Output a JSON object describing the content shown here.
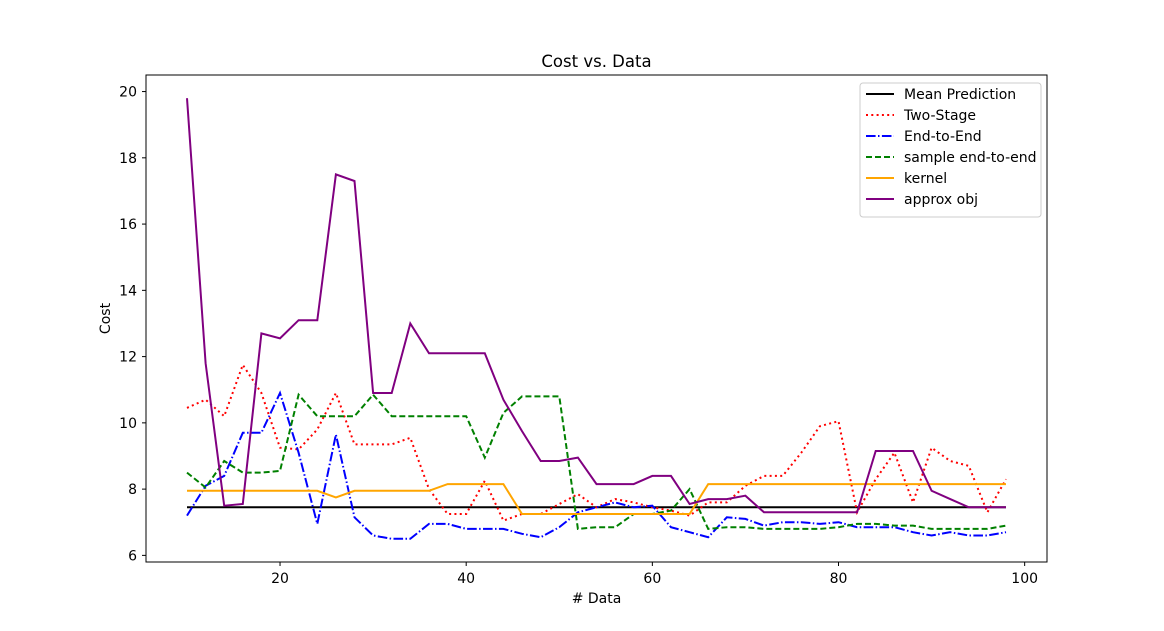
{
  "chart_data": {
    "type": "line",
    "title": "Cost vs. Data",
    "xlabel": "# Data",
    "ylabel": "Cost",
    "xlim": [
      5.6,
      102.4
    ],
    "ylim": [
      5.8,
      20.5
    ],
    "xticks": [
      20,
      40,
      60,
      80,
      100
    ],
    "yticks": [
      6,
      8,
      10,
      12,
      14,
      16,
      18,
      20
    ],
    "grid": false,
    "legend_position": "top-right",
    "x": [
      10,
      12,
      14,
      16,
      18,
      20,
      22,
      24,
      26,
      28,
      30,
      32,
      34,
      36,
      38,
      40,
      42,
      44,
      46,
      48,
      50,
      52,
      54,
      56,
      58,
      60,
      62,
      64,
      66,
      68,
      70,
      72,
      74,
      76,
      78,
      80,
      82,
      84,
      86,
      88,
      90,
      92,
      94,
      96,
      98
    ],
    "series": [
      {
        "name": "Mean Prediction",
        "color": "#000000",
        "dash": "solid",
        "y": [
          7.45,
          7.45,
          7.45,
          7.45,
          7.45,
          7.45,
          7.45,
          7.45,
          7.45,
          7.45,
          7.45,
          7.45,
          7.45,
          7.45,
          7.45,
          7.45,
          7.45,
          7.45,
          7.45,
          7.45,
          7.45,
          7.45,
          7.45,
          7.45,
          7.45,
          7.45,
          7.45,
          7.45,
          7.45,
          7.45,
          7.45,
          7.45,
          7.45,
          7.45,
          7.45,
          7.45,
          7.45,
          7.45,
          7.45,
          7.45,
          7.45,
          7.45,
          7.45,
          7.45,
          7.45
        ]
      },
      {
        "name": "Two-Stage",
        "color": "#ff0000",
        "dash": "dotted",
        "y": [
          10.45,
          10.7,
          10.2,
          11.75,
          10.9,
          9.25,
          9.2,
          9.8,
          10.9,
          9.35,
          9.35,
          9.35,
          9.55,
          8.0,
          7.25,
          7.25,
          8.25,
          7.05,
          7.25,
          7.25,
          7.55,
          7.85,
          7.45,
          7.7,
          7.6,
          7.45,
          7.35,
          7.2,
          7.6,
          7.6,
          8.1,
          8.4,
          8.4,
          9.1,
          9.9,
          10.05,
          7.3,
          8.3,
          9.1,
          7.6,
          9.25,
          8.85,
          8.7,
          7.3,
          8.3
        ]
      },
      {
        "name": "End-to-End",
        "color": "#0000ff",
        "dash": "dashdot",
        "y": [
          7.2,
          8.1,
          8.4,
          9.7,
          9.7,
          10.9,
          9.1,
          6.95,
          9.65,
          7.15,
          6.6,
          6.5,
          6.5,
          6.95,
          6.95,
          6.8,
          6.8,
          6.8,
          6.65,
          6.55,
          6.85,
          7.3,
          7.45,
          7.6,
          7.45,
          7.5,
          6.85,
          6.7,
          6.55,
          7.15,
          7.1,
          6.9,
          7.0,
          7.0,
          6.95,
          7.0,
          6.85,
          6.85,
          6.85,
          6.7,
          6.6,
          6.7,
          6.6,
          6.6,
          6.7
        ]
      },
      {
        "name": "sample end-to-end",
        "color": "#008000",
        "dash": "dashed",
        "y": [
          8.5,
          8.05,
          8.85,
          8.5,
          8.5,
          8.55,
          10.85,
          10.2,
          10.2,
          10.2,
          10.85,
          10.2,
          10.2,
          10.2,
          10.2,
          10.2,
          8.95,
          10.3,
          10.8,
          10.8,
          10.8,
          6.8,
          6.85,
          6.85,
          7.25,
          7.25,
          7.35,
          8.0,
          6.8,
          6.85,
          6.85,
          6.8,
          6.8,
          6.8,
          6.8,
          6.85,
          6.95,
          6.95,
          6.9,
          6.9,
          6.8,
          6.8,
          6.8,
          6.8,
          6.9
        ]
      },
      {
        "name": "kernel",
        "color": "#ffa500",
        "dash": "solid",
        "y": [
          7.95,
          7.95,
          7.95,
          7.95,
          7.95,
          7.95,
          7.95,
          7.95,
          7.75,
          7.95,
          7.95,
          7.95,
          7.95,
          7.95,
          8.15,
          8.15,
          8.15,
          8.15,
          7.25,
          7.25,
          7.25,
          7.25,
          7.25,
          7.25,
          7.25,
          7.25,
          7.25,
          7.25,
          8.15,
          8.15,
          8.15,
          8.15,
          8.15,
          8.15,
          8.15,
          8.15,
          8.15,
          8.15,
          8.15,
          8.15,
          8.15,
          8.15,
          8.15,
          8.15,
          8.15
        ]
      },
      {
        "name": "approx obj",
        "color": "#800080",
        "dash": "solid",
        "y": [
          19.8,
          11.8,
          7.5,
          7.55,
          12.7,
          12.55,
          13.1,
          13.1,
          17.5,
          17.3,
          10.9,
          10.9,
          13.0,
          12.1,
          12.1,
          12.1,
          12.1,
          10.7,
          9.75,
          8.85,
          8.85,
          8.95,
          8.15,
          8.15,
          8.15,
          8.4,
          8.4,
          7.55,
          7.7,
          7.7,
          7.8,
          7.3,
          7.3,
          7.3,
          7.3,
          7.3,
          7.3,
          9.15,
          9.15,
          9.15,
          7.95,
          7.7,
          7.45,
          7.45,
          7.45
        ]
      }
    ]
  }
}
